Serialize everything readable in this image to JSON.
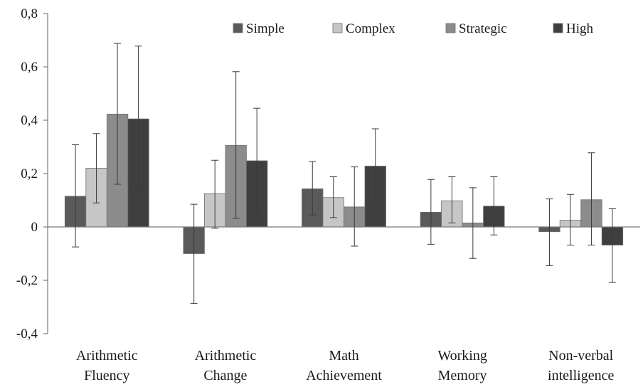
{
  "chart_data": {
    "type": "bar",
    "title": "",
    "xlabel": "",
    "ylabel": "",
    "ylim": [
      -0.4,
      0.8
    ],
    "yticks": [
      {
        "value": -0.4,
        "label": "-0,4"
      },
      {
        "value": -0.2,
        "label": "-0,2"
      },
      {
        "value": 0,
        "label": "0"
      },
      {
        "value": 0.2,
        "label": "0,2"
      },
      {
        "value": 0.4,
        "label": "0,4"
      },
      {
        "value": 0.6,
        "label": "0,6"
      },
      {
        "value": 0.8,
        "label": "0,8"
      }
    ],
    "categories": [
      [
        "Arithmetic",
        "Fluency"
      ],
      [
        "Arithmetic",
        "Change"
      ],
      [
        "Math",
        "Achievement"
      ],
      [
        "Working",
        "Memory"
      ],
      [
        "Non-verbal",
        "intelligence"
      ]
    ],
    "series": [
      {
        "name": "Simple",
        "color": "#5a5a5a",
        "values": [
          0.115,
          -0.1,
          0.143,
          0.055,
          -0.018
        ],
        "err_low": [
          -0.075,
          -0.287,
          0.045,
          -0.065,
          -0.145
        ],
        "err_high": [
          0.308,
          0.085,
          0.245,
          0.178,
          0.105
        ]
      },
      {
        "name": "Complex",
        "color": "#c6c6c6",
        "values": [
          0.22,
          0.125,
          0.11,
          0.098,
          0.025
        ],
        "err_low": [
          0.09,
          -0.005,
          0.035,
          0.015,
          -0.068
        ],
        "err_high": [
          0.35,
          0.25,
          0.188,
          0.188,
          0.122
        ]
      },
      {
        "name": "Strategic",
        "color": "#8c8c8c",
        "values": [
          0.423,
          0.306,
          0.075,
          0.015,
          0.102
        ],
        "err_low": [
          0.16,
          0.032,
          -0.072,
          -0.118,
          -0.068
        ],
        "err_high": [
          0.688,
          0.582,
          0.225,
          0.147,
          0.278
        ]
      },
      {
        "name": "High",
        "color": "#3f3f3f",
        "values": [
          0.405,
          0.248,
          0.228,
          0.078,
          -0.068
        ],
        "err_low": [
          0.138,
          0.05,
          0.09,
          -0.03,
          -0.208
        ],
        "err_high": [
          0.678,
          0.445,
          0.368,
          0.188,
          0.068
        ]
      }
    ],
    "error_bars": true,
    "grid": false,
    "legend": "top"
  }
}
